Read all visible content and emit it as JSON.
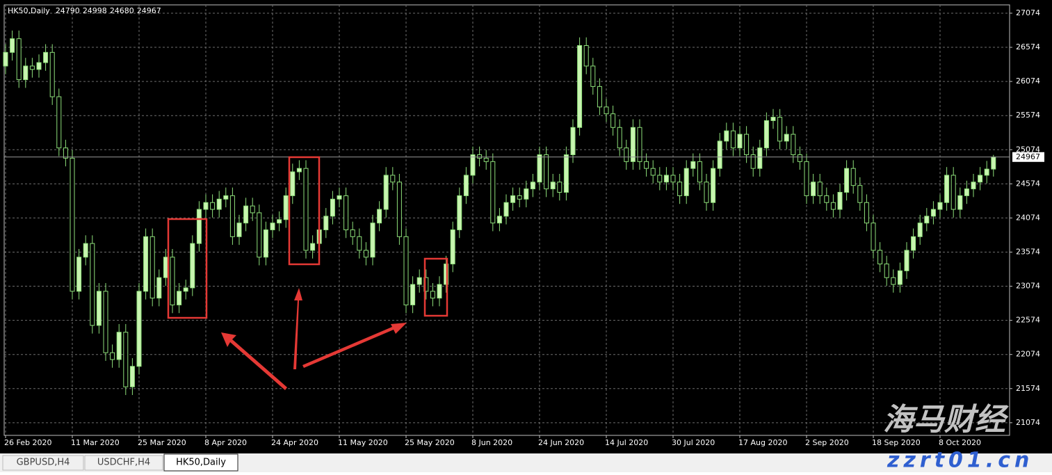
{
  "chart_data": {
    "type": "candlestick",
    "title": "HK50,Daily",
    "categories": [
      "26 Feb 2020",
      null,
      null,
      null,
      null,
      null,
      null,
      null,
      null,
      null,
      "11 Mar 2020",
      null,
      null,
      null,
      null,
      null,
      null,
      null,
      null,
      null,
      "25 Mar 2020",
      null,
      null,
      null,
      null,
      null,
      null,
      null,
      null,
      null,
      "8 Apr 2020",
      null,
      null,
      null,
      null,
      null,
      null,
      null,
      null,
      null,
      "24 Apr 2020",
      null,
      null,
      null,
      null,
      null,
      null,
      null,
      null,
      null,
      "11 May 2020",
      null,
      null,
      null,
      null,
      null,
      null,
      null,
      null,
      null,
      "25 May 2020",
      null,
      null,
      null,
      null,
      null,
      null,
      null,
      null,
      null,
      "8 Jun 2020",
      null,
      null,
      null,
      null,
      null,
      null,
      null,
      null,
      null,
      "24 Jun 2020",
      null,
      null,
      null,
      null,
      null,
      null,
      null,
      null,
      null,
      "14 Jul 2020",
      null,
      null,
      null,
      null,
      null,
      null,
      null,
      null,
      null,
      "30 Jul 2020",
      null,
      null,
      null,
      null,
      null,
      null,
      null,
      null,
      null,
      "17 Aug 2020",
      null,
      null,
      null,
      null,
      null,
      null,
      null,
      null,
      null,
      "2 Sep 2020",
      null,
      null,
      null,
      null,
      null,
      null,
      null,
      null,
      null,
      "18 Sep 2020",
      null,
      null,
      null,
      null,
      null,
      null,
      null,
      null,
      null,
      "8 Oct 2020",
      null,
      null,
      null,
      null,
      null,
      null,
      null,
      null
    ],
    "open": [
      26300,
      26500,
      26700,
      26100,
      26300,
      26250,
      26350,
      26500,
      25850,
      25100,
      24950,
      23000,
      23500,
      23700,
      22500,
      23000,
      22100,
      22000,
      22400,
      21600,
      21900,
      23000,
      23800,
      22900,
      23200,
      23500,
      22800,
      23000,
      23050,
      23700,
      24200,
      24300,
      24200,
      24350,
      24400,
      23800,
      24000,
      24250,
      24150,
      23500,
      23900,
      24000,
      24050,
      24400,
      24750,
      24800,
      23600,
      23700,
      23900,
      24100,
      24350,
      24400,
      23900,
      23800,
      23600,
      23500,
      24000,
      24200,
      24700,
      24600,
      23800,
      22800,
      23100,
      23200,
      23000,
      22900,
      23100,
      23400,
      23900,
      24400,
      24700,
      25000,
      24950,
      24900,
      24000,
      24100,
      24300,
      24400,
      24350,
      24500,
      24600,
      25000,
      24500,
      24600,
      24450,
      25000,
      25400,
      26600,
      26300,
      26000,
      25700,
      25600,
      25400,
      25100,
      24900,
      25400,
      24900,
      24800,
      24700,
      24600,
      24700,
      24600,
      24400,
      24800,
      24900,
      24600,
      24300,
      24800,
      25200,
      25350,
      25100,
      25300,
      25000,
      24800,
      25100,
      25500,
      25550,
      25200,
      25300,
      25000,
      24900,
      24400,
      24600,
      24400,
      24300,
      24200,
      24450,
      24800,
      24550,
      24300,
      24000,
      23600,
      23400,
      23200,
      23100,
      23300,
      23600,
      23800,
      24000,
      24100,
      24200,
      24300,
      24700,
      24200,
      24400,
      24500,
      24600,
      24700,
      24790
    ],
    "high": [
      26620,
      26820,
      26820,
      26420,
      26420,
      26470,
      26620,
      26620,
      25970,
      25220,
      25070,
      23620,
      23820,
      23820,
      23120,
      23120,
      22220,
      22520,
      22520,
      22020,
      23120,
      23920,
      23920,
      23320,
      23620,
      23620,
      23120,
      23170,
      23820,
      24320,
      24420,
      24420,
      24470,
      24520,
      24520,
      24120,
      24370,
      24370,
      24270,
      24020,
      24120,
      24170,
      24520,
      24870,
      24920,
      24920,
      23820,
      24020,
      24220,
      24470,
      24520,
      24520,
      24020,
      23920,
      23720,
      24120,
      24320,
      24820,
      24820,
      24720,
      23920,
      23220,
      23320,
      23320,
      23120,
      23220,
      23520,
      24020,
      24520,
      24820,
      25120,
      25120,
      25070,
      25020,
      24220,
      24420,
      24520,
      24520,
      24620,
      24720,
      25120,
      25120,
      24720,
      24720,
      25120,
      25520,
      26720,
      26720,
      26420,
      26120,
      25820,
      25720,
      25520,
      25220,
      25520,
      25520,
      25020,
      24920,
      24820,
      24820,
      24820,
      24720,
      24920,
      25020,
      25020,
      24720,
      24920,
      25320,
      25470,
      25470,
      25420,
      25420,
      25120,
      25220,
      25620,
      25670,
      25670,
      25420,
      25420,
      25120,
      25020,
      24720,
      24720,
      24520,
      24420,
      24570,
      24920,
      24920,
      24670,
      24420,
      24120,
      23720,
      23520,
      23320,
      23420,
      23720,
      23920,
      24120,
      24220,
      24320,
      24420,
      24820,
      24820,
      24520,
      24620,
      24720,
      24820,
      24910,
      24998
    ],
    "low": [
      26180,
      26380,
      25980,
      25980,
      26130,
      26130,
      26230,
      25730,
      24980,
      24830,
      22880,
      22880,
      23380,
      22380,
      22380,
      21980,
      21880,
      21880,
      21480,
      21480,
      21780,
      22880,
      22780,
      22780,
      23080,
      22680,
      22680,
      22880,
      22930,
      23580,
      24080,
      24080,
      24080,
      24230,
      23680,
      23680,
      23880,
      24030,
      23380,
      23380,
      23780,
      23880,
      23930,
      24280,
      24630,
      23480,
      23480,
      23580,
      23780,
      23980,
      24230,
      23780,
      23680,
      23480,
      23380,
      23380,
      23880,
      24080,
      24480,
      23680,
      22680,
      22680,
      22980,
      22880,
      22780,
      22780,
      22980,
      23280,
      23780,
      24280,
      24580,
      24830,
      24780,
      23880,
      23880,
      23980,
      24180,
      24230,
      24230,
      24380,
      24480,
      24380,
      24380,
      24330,
      24330,
      24880,
      25280,
      26180,
      25880,
      25580,
      25480,
      25280,
      24980,
      24780,
      24780,
      24780,
      24680,
      24580,
      24480,
      24480,
      24480,
      24280,
      24280,
      24680,
      24480,
      24180,
      24180,
      24680,
      25080,
      24980,
      24980,
      24880,
      24680,
      24680,
      24980,
      25380,
      25080,
      25080,
      24880,
      24780,
      24280,
      24280,
      24280,
      24180,
      24080,
      24080,
      24330,
      24430,
      24180,
      23880,
      23480,
      23280,
      23080,
      22980,
      22980,
      23180,
      23480,
      23680,
      23880,
      23980,
      24080,
      24180,
      24080,
      24080,
      24280,
      24380,
      24480,
      24580,
      24680
    ],
    "close": [
      26500,
      26700,
      26100,
      26300,
      26250,
      26350,
      26500,
      25850,
      25100,
      24950,
      23000,
      23500,
      23700,
      22500,
      23000,
      22100,
      22000,
      22400,
      21600,
      21900,
      23000,
      23800,
      22900,
      23200,
      23500,
      22800,
      23000,
      23050,
      23700,
      24200,
      24300,
      24200,
      24350,
      24400,
      23800,
      24000,
      24250,
      24150,
      23500,
      23900,
      24000,
      24050,
      24400,
      24750,
      24800,
      23600,
      23700,
      23900,
      24100,
      24350,
      24400,
      23900,
      23800,
      23600,
      23500,
      24000,
      24200,
      24700,
      24600,
      23800,
      22800,
      23100,
      23200,
      23000,
      22900,
      23100,
      23400,
      23900,
      24400,
      24700,
      25000,
      24950,
      24900,
      24000,
      24100,
      24300,
      24400,
      24350,
      24500,
      24600,
      25000,
      24500,
      24600,
      24450,
      25000,
      25400,
      26600,
      26300,
      26000,
      25700,
      25600,
      25400,
      25100,
      24900,
      25400,
      24900,
      24800,
      24700,
      24600,
      24700,
      24600,
      24400,
      24800,
      24900,
      24600,
      24300,
      24800,
      25200,
      25350,
      25100,
      25300,
      25000,
      24800,
      25100,
      25500,
      25550,
      25200,
      25300,
      25000,
      24900,
      24400,
      24600,
      24400,
      24300,
      24200,
      24450,
      24800,
      24550,
      24300,
      24000,
      23600,
      23400,
      23200,
      23100,
      23300,
      23600,
      23800,
      24000,
      24100,
      24200,
      24300,
      24700,
      24200,
      24400,
      24500,
      24600,
      24700,
      24790,
      24967
    ],
    "up_color": "#c8f5b0",
    "down_color": "#000000",
    "wick_color": "#8ee07a",
    "grid_color": "#6e6e6e",
    "grid": true,
    "ylim": [
      20889,
      27196
    ],
    "yticks": [
      21074,
      21574,
      22074,
      22574,
      23074,
      23574,
      24074,
      24574,
      25074,
      25574,
      26074,
      26574,
      27074
    ]
  },
  "tabs": [
    "GBPUSD,H4",
    "USDCHF,H4",
    "HK50,Daily"
  ],
  "watermark": {
    "name": "海马财经",
    "url": "zzrt01.cn"
  }
}
